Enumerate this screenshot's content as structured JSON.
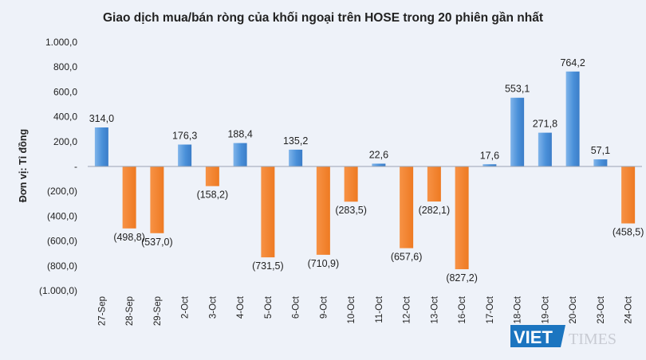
{
  "chart_data": {
    "type": "bar",
    "title": "Giao dịch mua/bán ròng của khối ngoại trên HOSE trong 20 phiên gần nhất",
    "ylabel": "Đơn vị: Tỉ đồng",
    "xlabel": "",
    "ylim": [
      -1000,
      1000
    ],
    "yticks": [
      1000,
      800,
      600,
      400,
      200,
      0,
      -200,
      -400,
      -600,
      -800,
      -1000
    ],
    "ytick_labels": [
      "1.000,0",
      "800,0",
      "600,0",
      "400,0",
      "200,0",
      "-",
      "(200,0)",
      "(400,0)",
      "(600,0)",
      "(800,0)",
      "(1.000,0)"
    ],
    "categories": [
      "27-Sep",
      "28-Sep",
      "29-Sep",
      "2-Oct",
      "3-Oct",
      "4-Oct",
      "5-Oct",
      "6-Oct",
      "9-Oct",
      "10-Oct",
      "11-Oct",
      "12-Oct",
      "13-Oct",
      "16-Oct",
      "17-Oct",
      "18-Oct",
      "19-Oct",
      "20-Oct",
      "23-Oct",
      "24-Oct"
    ],
    "values": [
      314.0,
      -498.8,
      -537.0,
      176.3,
      -158.2,
      188.4,
      -731.5,
      135.2,
      -710.9,
      -283.5,
      22.6,
      -657.6,
      -282.1,
      -827.2,
      17.6,
      553.1,
      271.8,
      764.2,
      57.1,
      -458.5
    ],
    "value_labels": [
      "314,0",
      "(498,8)",
      "(537,0)",
      "176,3",
      "(158,2)",
      "188,4",
      "(731,5)",
      "135,2",
      "(710,9)",
      "(283,5)",
      "22,6",
      "(657,6)",
      "(282,1)",
      "(827,2)",
      "17,6",
      "553,1",
      "271,8",
      "764,2",
      "57,1",
      "(458,5)"
    ],
    "colors": {
      "positive": "#4a90d9",
      "positive_light": "#7fb4ea",
      "negative": "#f5822a",
      "negative_dark": "#e4701c"
    },
    "grid": false,
    "legend": "none"
  },
  "watermark": {
    "part1": "VIET",
    "part2": "TIMES"
  }
}
